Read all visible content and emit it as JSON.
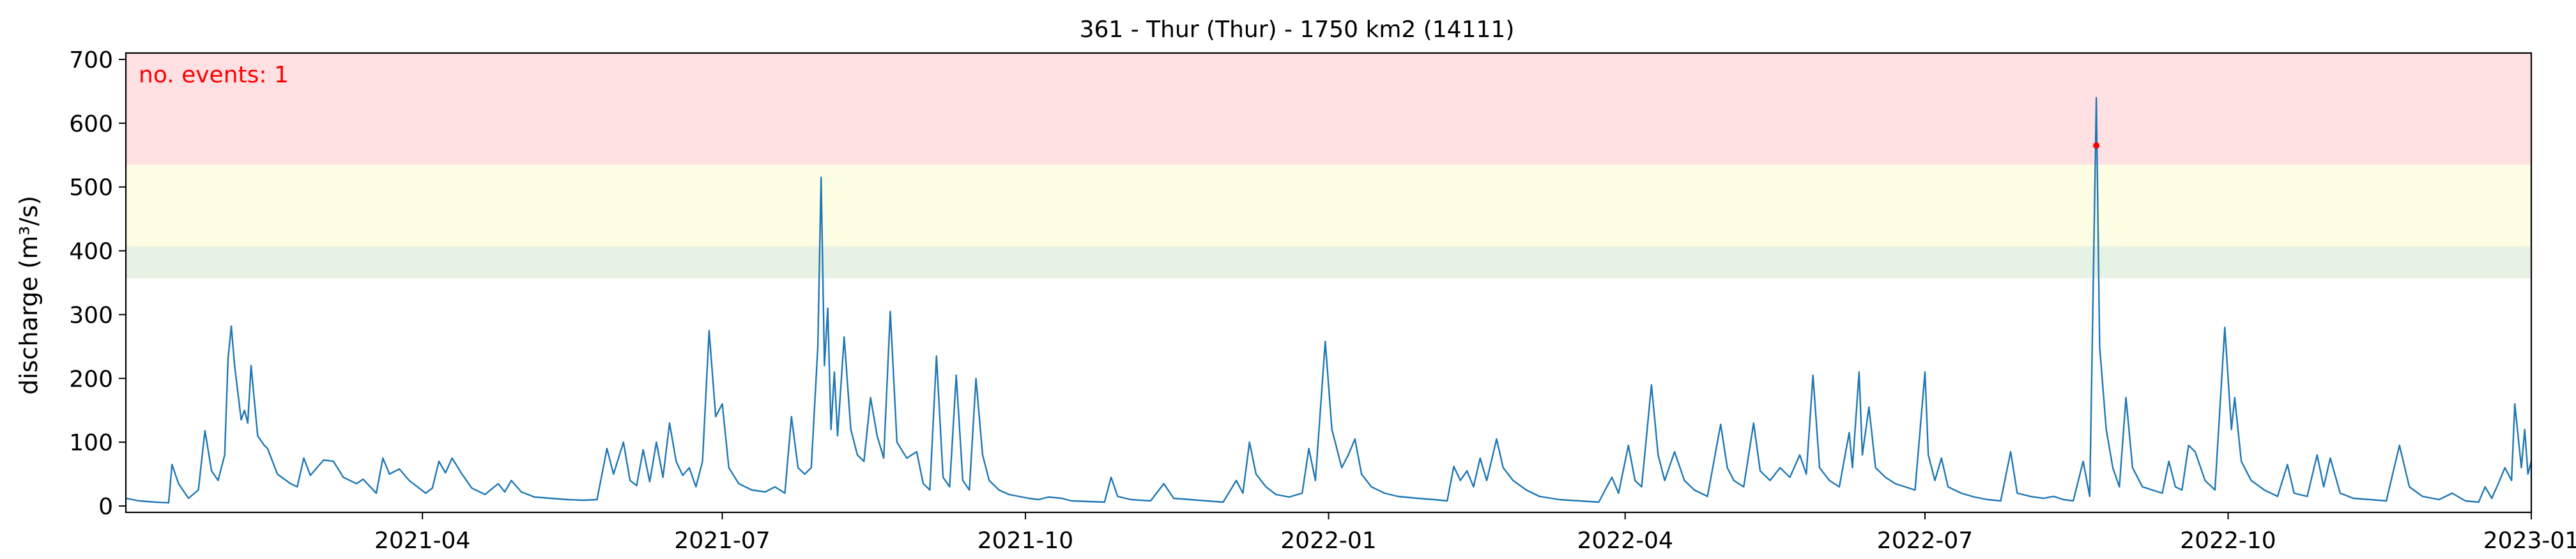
{
  "chart_data": {
    "type": "line",
    "title": "361 - Thur (Thur) - 1750 km2 (14111)",
    "ylabel": "discharge (m³/s)",
    "xlabel": "",
    "xlim": [
      "2021-01-01",
      "2023-01-01"
    ],
    "ylim": [
      -10,
      710
    ],
    "yticks": [
      0,
      100,
      200,
      300,
      400,
      500,
      600,
      700
    ],
    "xticks": [
      "2021-04",
      "2021-07",
      "2021-10",
      "2022-01",
      "2022-04",
      "2022-07",
      "2022-10",
      "2023-01"
    ],
    "grid": false,
    "annotation": "no. events: 1",
    "colors": {
      "line": "#1f77b4",
      "event_marker": "#ff0000",
      "annotation": "#ff0000",
      "band_red": "#ffe0e3",
      "band_yellow": "#fdfee3",
      "band_green": "#e7f1e4"
    },
    "bands": [
      {
        "level": "red",
        "from": 535,
        "to": 710
      },
      {
        "level": "yellow",
        "from": 407,
        "to": 535
      },
      {
        "level": "green",
        "from": 357,
        "to": 407
      }
    ],
    "events": [
      {
        "x": "2022-08-22",
        "y": 565
      }
    ],
    "series": [
      {
        "points": [
          [
            "2021-01-01",
            12
          ],
          [
            "2021-01-05",
            8
          ],
          [
            "2021-01-10",
            6
          ],
          [
            "2021-01-14",
            5
          ],
          [
            "2021-01-15",
            65
          ],
          [
            "2021-01-17",
            35
          ],
          [
            "2021-01-20",
            12
          ],
          [
            "2021-01-23",
            25
          ],
          [
            "2021-01-25",
            118
          ],
          [
            "2021-01-27",
            55
          ],
          [
            "2021-01-29",
            40
          ],
          [
            "2021-01-31",
            80
          ],
          [
            "2021-02-01",
            230
          ],
          [
            "2021-02-02",
            282
          ],
          [
            "2021-02-03",
            220
          ],
          [
            "2021-02-05",
            135
          ],
          [
            "2021-02-06",
            150
          ],
          [
            "2021-02-07",
            130
          ],
          [
            "2021-02-08",
            220
          ],
          [
            "2021-02-10",
            110
          ],
          [
            "2021-02-12",
            95
          ],
          [
            "2021-02-13",
            90
          ],
          [
            "2021-02-16",
            50
          ],
          [
            "2021-02-20",
            35
          ],
          [
            "2021-02-22",
            30
          ],
          [
            "2021-02-24",
            75
          ],
          [
            "2021-02-26",
            48
          ],
          [
            "2021-02-28",
            60
          ],
          [
            "2021-03-02",
            72
          ],
          [
            "2021-03-05",
            70
          ],
          [
            "2021-03-08",
            45
          ],
          [
            "2021-03-12",
            35
          ],
          [
            "2021-03-14",
            42
          ],
          [
            "2021-03-18",
            20
          ],
          [
            "2021-03-20",
            75
          ],
          [
            "2021-03-22",
            50
          ],
          [
            "2021-03-25",
            58
          ],
          [
            "2021-03-28",
            40
          ],
          [
            "2021-04-02",
            20
          ],
          [
            "2021-04-04",
            28
          ],
          [
            "2021-04-06",
            70
          ],
          [
            "2021-04-08",
            52
          ],
          [
            "2021-04-10",
            75
          ],
          [
            "2021-04-13",
            50
          ],
          [
            "2021-04-16",
            28
          ],
          [
            "2021-04-20",
            18
          ],
          [
            "2021-04-24",
            35
          ],
          [
            "2021-04-26",
            22
          ],
          [
            "2021-04-28",
            40
          ],
          [
            "2021-05-01",
            22
          ],
          [
            "2021-05-05",
            14
          ],
          [
            "2021-05-10",
            12
          ],
          [
            "2021-05-15",
            10
          ],
          [
            "2021-05-20",
            9
          ],
          [
            "2021-05-24",
            10
          ],
          [
            "2021-05-27",
            90
          ],
          [
            "2021-05-29",
            50
          ],
          [
            "2021-06-01",
            100
          ],
          [
            "2021-06-03",
            40
          ],
          [
            "2021-06-05",
            32
          ],
          [
            "2021-06-07",
            88
          ],
          [
            "2021-06-09",
            38
          ],
          [
            "2021-06-11",
            100
          ],
          [
            "2021-06-13",
            45
          ],
          [
            "2021-06-15",
            130
          ],
          [
            "2021-06-17",
            70
          ],
          [
            "2021-06-19",
            48
          ],
          [
            "2021-06-21",
            60
          ],
          [
            "2021-06-23",
            30
          ],
          [
            "2021-06-25",
            70
          ],
          [
            "2021-06-27",
            275
          ],
          [
            "2021-06-29",
            140
          ],
          [
            "2021-07-01",
            160
          ],
          [
            "2021-07-03",
            60
          ],
          [
            "2021-07-06",
            35
          ],
          [
            "2021-07-10",
            25
          ],
          [
            "2021-07-14",
            22
          ],
          [
            "2021-07-17",
            30
          ],
          [
            "2021-07-20",
            20
          ],
          [
            "2021-07-22",
            140
          ],
          [
            "2021-07-24",
            60
          ],
          [
            "2021-07-26",
            50
          ],
          [
            "2021-07-28",
            60
          ],
          [
            "2021-07-30",
            250
          ],
          [
            "2021-07-31",
            515
          ],
          [
            "2021-08-01",
            220
          ],
          [
            "2021-08-02",
            310
          ],
          [
            "2021-08-03",
            120
          ],
          [
            "2021-08-04",
            210
          ],
          [
            "2021-08-05",
            110
          ],
          [
            "2021-08-07",
            265
          ],
          [
            "2021-08-09",
            120
          ],
          [
            "2021-08-11",
            80
          ],
          [
            "2021-08-13",
            70
          ],
          [
            "2021-08-15",
            170
          ],
          [
            "2021-08-17",
            110
          ],
          [
            "2021-08-19",
            75
          ],
          [
            "2021-08-21",
            305
          ],
          [
            "2021-08-23",
            100
          ],
          [
            "2021-08-26",
            75
          ],
          [
            "2021-08-29",
            85
          ],
          [
            "2021-08-31",
            35
          ],
          [
            "2021-09-02",
            25
          ],
          [
            "2021-09-04",
            235
          ],
          [
            "2021-09-06",
            45
          ],
          [
            "2021-09-08",
            30
          ],
          [
            "2021-09-10",
            205
          ],
          [
            "2021-09-12",
            40
          ],
          [
            "2021-09-14",
            25
          ],
          [
            "2021-09-16",
            200
          ],
          [
            "2021-09-18",
            80
          ],
          [
            "2021-09-20",
            40
          ],
          [
            "2021-09-23",
            25
          ],
          [
            "2021-09-26",
            18
          ],
          [
            "2021-09-29",
            15
          ],
          [
            "2021-10-02",
            12
          ],
          [
            "2021-10-05",
            10
          ],
          [
            "2021-10-08",
            14
          ],
          [
            "2021-10-12",
            12
          ],
          [
            "2021-10-15",
            8
          ],
          [
            "2021-10-20",
            7
          ],
          [
            "2021-10-25",
            6
          ],
          [
            "2021-10-27",
            45
          ],
          [
            "2021-10-29",
            15
          ],
          [
            "2021-11-02",
            10
          ],
          [
            "2021-11-08",
            8
          ],
          [
            "2021-11-12",
            35
          ],
          [
            "2021-11-15",
            12
          ],
          [
            "2021-11-20",
            10
          ],
          [
            "2021-11-25",
            8
          ],
          [
            "2021-11-30",
            6
          ],
          [
            "2021-12-04",
            40
          ],
          [
            "2021-12-06",
            20
          ],
          [
            "2021-12-08",
            100
          ],
          [
            "2021-12-10",
            50
          ],
          [
            "2021-12-13",
            30
          ],
          [
            "2021-12-16",
            18
          ],
          [
            "2021-12-20",
            14
          ],
          [
            "2021-12-24",
            20
          ],
          [
            "2021-12-26",
            90
          ],
          [
            "2021-12-28",
            40
          ],
          [
            "2021-12-31",
            258
          ],
          [
            "2022-01-02",
            120
          ],
          [
            "2022-01-05",
            60
          ],
          [
            "2022-01-07",
            80
          ],
          [
            "2022-01-09",
            105
          ],
          [
            "2022-01-11",
            50
          ],
          [
            "2022-01-14",
            30
          ],
          [
            "2022-01-18",
            20
          ],
          [
            "2022-01-22",
            15
          ],
          [
            "2022-01-28",
            12
          ],
          [
            "2022-02-02",
            10
          ],
          [
            "2022-02-06",
            8
          ],
          [
            "2022-02-08",
            62
          ],
          [
            "2022-02-10",
            40
          ],
          [
            "2022-02-12",
            55
          ],
          [
            "2022-02-14",
            30
          ],
          [
            "2022-02-16",
            75
          ],
          [
            "2022-02-18",
            40
          ],
          [
            "2022-02-21",
            105
          ],
          [
            "2022-02-23",
            60
          ],
          [
            "2022-02-26",
            40
          ],
          [
            "2022-03-02",
            25
          ],
          [
            "2022-03-06",
            15
          ],
          [
            "2022-03-12",
            10
          ],
          [
            "2022-03-18",
            8
          ],
          [
            "2022-03-24",
            6
          ],
          [
            "2022-03-28",
            45
          ],
          [
            "2022-03-30",
            20
          ],
          [
            "2022-04-02",
            95
          ],
          [
            "2022-04-04",
            40
          ],
          [
            "2022-04-06",
            30
          ],
          [
            "2022-04-09",
            190
          ],
          [
            "2022-04-11",
            80
          ],
          [
            "2022-04-13",
            40
          ],
          [
            "2022-04-16",
            85
          ],
          [
            "2022-04-19",
            40
          ],
          [
            "2022-04-22",
            25
          ],
          [
            "2022-04-26",
            15
          ],
          [
            "2022-04-30",
            128
          ],
          [
            "2022-05-02",
            60
          ],
          [
            "2022-05-04",
            40
          ],
          [
            "2022-05-07",
            30
          ],
          [
            "2022-05-10",
            130
          ],
          [
            "2022-05-12",
            55
          ],
          [
            "2022-05-15",
            40
          ],
          [
            "2022-05-18",
            60
          ],
          [
            "2022-05-21",
            45
          ],
          [
            "2022-05-24",
            80
          ],
          [
            "2022-05-26",
            50
          ],
          [
            "2022-05-28",
            205
          ],
          [
            "2022-05-30",
            60
          ],
          [
            "2022-06-02",
            40
          ],
          [
            "2022-06-05",
            30
          ],
          [
            "2022-06-08",
            115
          ],
          [
            "2022-06-09",
            60
          ],
          [
            "2022-06-11",
            210
          ],
          [
            "2022-06-12",
            80
          ],
          [
            "2022-06-14",
            155
          ],
          [
            "2022-06-16",
            60
          ],
          [
            "2022-06-19",
            45
          ],
          [
            "2022-06-22",
            35
          ],
          [
            "2022-06-25",
            30
          ],
          [
            "2022-06-28",
            25
          ],
          [
            "2022-07-01",
            210
          ],
          [
            "2022-07-02",
            80
          ],
          [
            "2022-07-04",
            40
          ],
          [
            "2022-07-06",
            75
          ],
          [
            "2022-07-08",
            30
          ],
          [
            "2022-07-12",
            20
          ],
          [
            "2022-07-16",
            14
          ],
          [
            "2022-07-20",
            10
          ],
          [
            "2022-07-24",
            8
          ],
          [
            "2022-07-27",
            85
          ],
          [
            "2022-07-29",
            20
          ],
          [
            "2022-08-02",
            15
          ],
          [
            "2022-08-06",
            12
          ],
          [
            "2022-08-09",
            15
          ],
          [
            "2022-08-12",
            10
          ],
          [
            "2022-08-15",
            8
          ],
          [
            "2022-08-18",
            70
          ],
          [
            "2022-08-20",
            15
          ],
          [
            "2022-08-22",
            640
          ],
          [
            "2022-08-23",
            250
          ],
          [
            "2022-08-25",
            120
          ],
          [
            "2022-08-27",
            60
          ],
          [
            "2022-08-29",
            30
          ],
          [
            "2022-08-31",
            170
          ],
          [
            "2022-09-02",
            60
          ],
          [
            "2022-09-05",
            30
          ],
          [
            "2022-09-08",
            25
          ],
          [
            "2022-09-11",
            20
          ],
          [
            "2022-09-13",
            70
          ],
          [
            "2022-09-15",
            30
          ],
          [
            "2022-09-17",
            25
          ],
          [
            "2022-09-19",
            95
          ],
          [
            "2022-09-21",
            85
          ],
          [
            "2022-09-24",
            40
          ],
          [
            "2022-09-27",
            25
          ],
          [
            "2022-09-30",
            280
          ],
          [
            "2022-10-02",
            120
          ],
          [
            "2022-10-03",
            170
          ],
          [
            "2022-10-05",
            70
          ],
          [
            "2022-10-08",
            40
          ],
          [
            "2022-10-12",
            25
          ],
          [
            "2022-10-16",
            15
          ],
          [
            "2022-10-19",
            65
          ],
          [
            "2022-10-21",
            20
          ],
          [
            "2022-10-25",
            15
          ],
          [
            "2022-10-28",
            80
          ],
          [
            "2022-10-30",
            30
          ],
          [
            "2022-11-01",
            75
          ],
          [
            "2022-11-04",
            20
          ],
          [
            "2022-11-08",
            12
          ],
          [
            "2022-11-13",
            10
          ],
          [
            "2022-11-18",
            8
          ],
          [
            "2022-11-22",
            95
          ],
          [
            "2022-11-25",
            30
          ],
          [
            "2022-11-29",
            15
          ],
          [
            "2022-12-04",
            10
          ],
          [
            "2022-12-08",
            20
          ],
          [
            "2022-12-12",
            8
          ],
          [
            "2022-12-16",
            6
          ],
          [
            "2022-12-18",
            30
          ],
          [
            "2022-12-20",
            12
          ],
          [
            "2022-12-22",
            35
          ],
          [
            "2022-12-24",
            60
          ],
          [
            "2022-12-26",
            40
          ],
          [
            "2022-12-27",
            160
          ],
          [
            "2022-12-29",
            60
          ],
          [
            "2022-12-30",
            120
          ],
          [
            "2022-12-31",
            50
          ],
          [
            "2023-01-01",
            70
          ]
        ]
      }
    ]
  }
}
